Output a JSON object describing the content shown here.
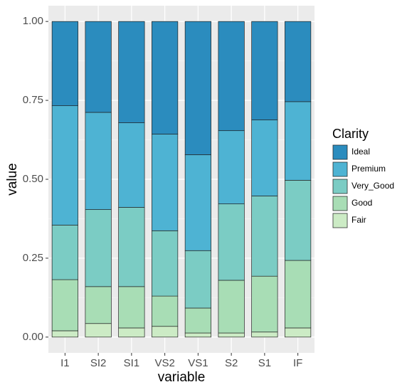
{
  "chart_data": {
    "type": "stacked_bar",
    "x_label": "variable",
    "y_label": "value",
    "legend_title": "Clarity",
    "categories": [
      "I1",
      "SI2",
      "SI1",
      "VS2",
      "VS1",
      "S2",
      "S1",
      "IF"
    ],
    "series": [
      {
        "name": "Fair",
        "color": "#ccebc5",
        "values": [
          0.02,
          0.043,
          0.029,
          0.034,
          0.013,
          0.013,
          0.016,
          0.029
        ]
      },
      {
        "name": "Good",
        "color": "#a8ddb5",
        "values": [
          0.162,
          0.117,
          0.131,
          0.096,
          0.079,
          0.167,
          0.177,
          0.214
        ]
      },
      {
        "name": "Very_Good",
        "color": "#7bccc4",
        "values": [
          0.173,
          0.244,
          0.251,
          0.207,
          0.182,
          0.242,
          0.254,
          0.254
        ]
      },
      {
        "name": "Premium",
        "color": "#4eb3d3",
        "values": [
          0.378,
          0.308,
          0.268,
          0.306,
          0.304,
          0.232,
          0.241,
          0.249
        ]
      },
      {
        "name": "Ideal",
        "color": "#2b8cbe",
        "values": [
          0.267,
          0.288,
          0.321,
          0.357,
          0.422,
          0.346,
          0.312,
          0.254
        ]
      }
    ],
    "ylim": [
      -0.05,
      1.05
    ],
    "yticks": [
      {
        "value": 0,
        "label": "0.00"
      },
      {
        "value": 0.25,
        "label": "0.25"
      },
      {
        "value": 0.5,
        "label": "0.50"
      },
      {
        "value": 0.75,
        "label": "0.75"
      },
      {
        "value": 1,
        "label": "1.00"
      }
    ],
    "grid": true,
    "legend_position": "right"
  }
}
